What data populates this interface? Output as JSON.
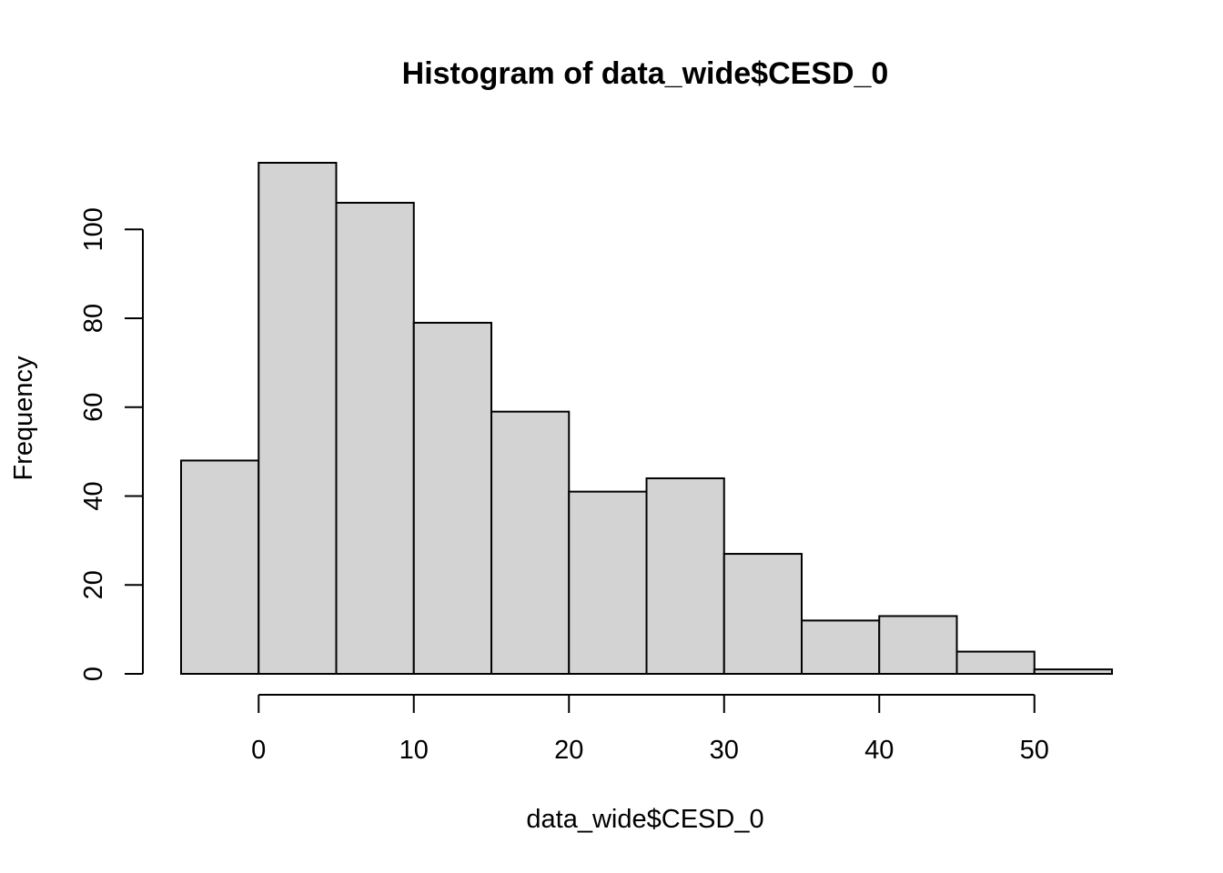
{
  "chart_data": {
    "type": "bar",
    "title": "Histogram of data_wide$CESD_0",
    "xlabel": "data_wide$CESD_0",
    "ylabel": "Frequency",
    "bins": [
      {
        "from": -5,
        "to": 0,
        "count": 48
      },
      {
        "from": 0,
        "to": 5,
        "count": 115
      },
      {
        "from": 5,
        "to": 10,
        "count": 106
      },
      {
        "from": 10,
        "to": 15,
        "count": 79
      },
      {
        "from": 15,
        "to": 20,
        "count": 59
      },
      {
        "from": 20,
        "to": 25,
        "count": 41
      },
      {
        "from": 25,
        "to": 30,
        "count": 44
      },
      {
        "from": 30,
        "to": 35,
        "count": 27
      },
      {
        "from": 35,
        "to": 40,
        "count": 12
      },
      {
        "from": 40,
        "to": 45,
        "count": 13
      },
      {
        "from": 45,
        "to": 50,
        "count": 5
      },
      {
        "from": 50,
        "to": 55,
        "count": 1
      }
    ],
    "xlim": [
      -5,
      55
    ],
    "ylim": [
      0,
      115
    ],
    "x_ticks": [
      0,
      10,
      20,
      30,
      40,
      50
    ],
    "y_ticks": [
      0,
      20,
      40,
      60,
      80,
      100
    ],
    "grid": false,
    "bar_fill": "#d3d3d3",
    "bar_stroke": "#000000"
  }
}
